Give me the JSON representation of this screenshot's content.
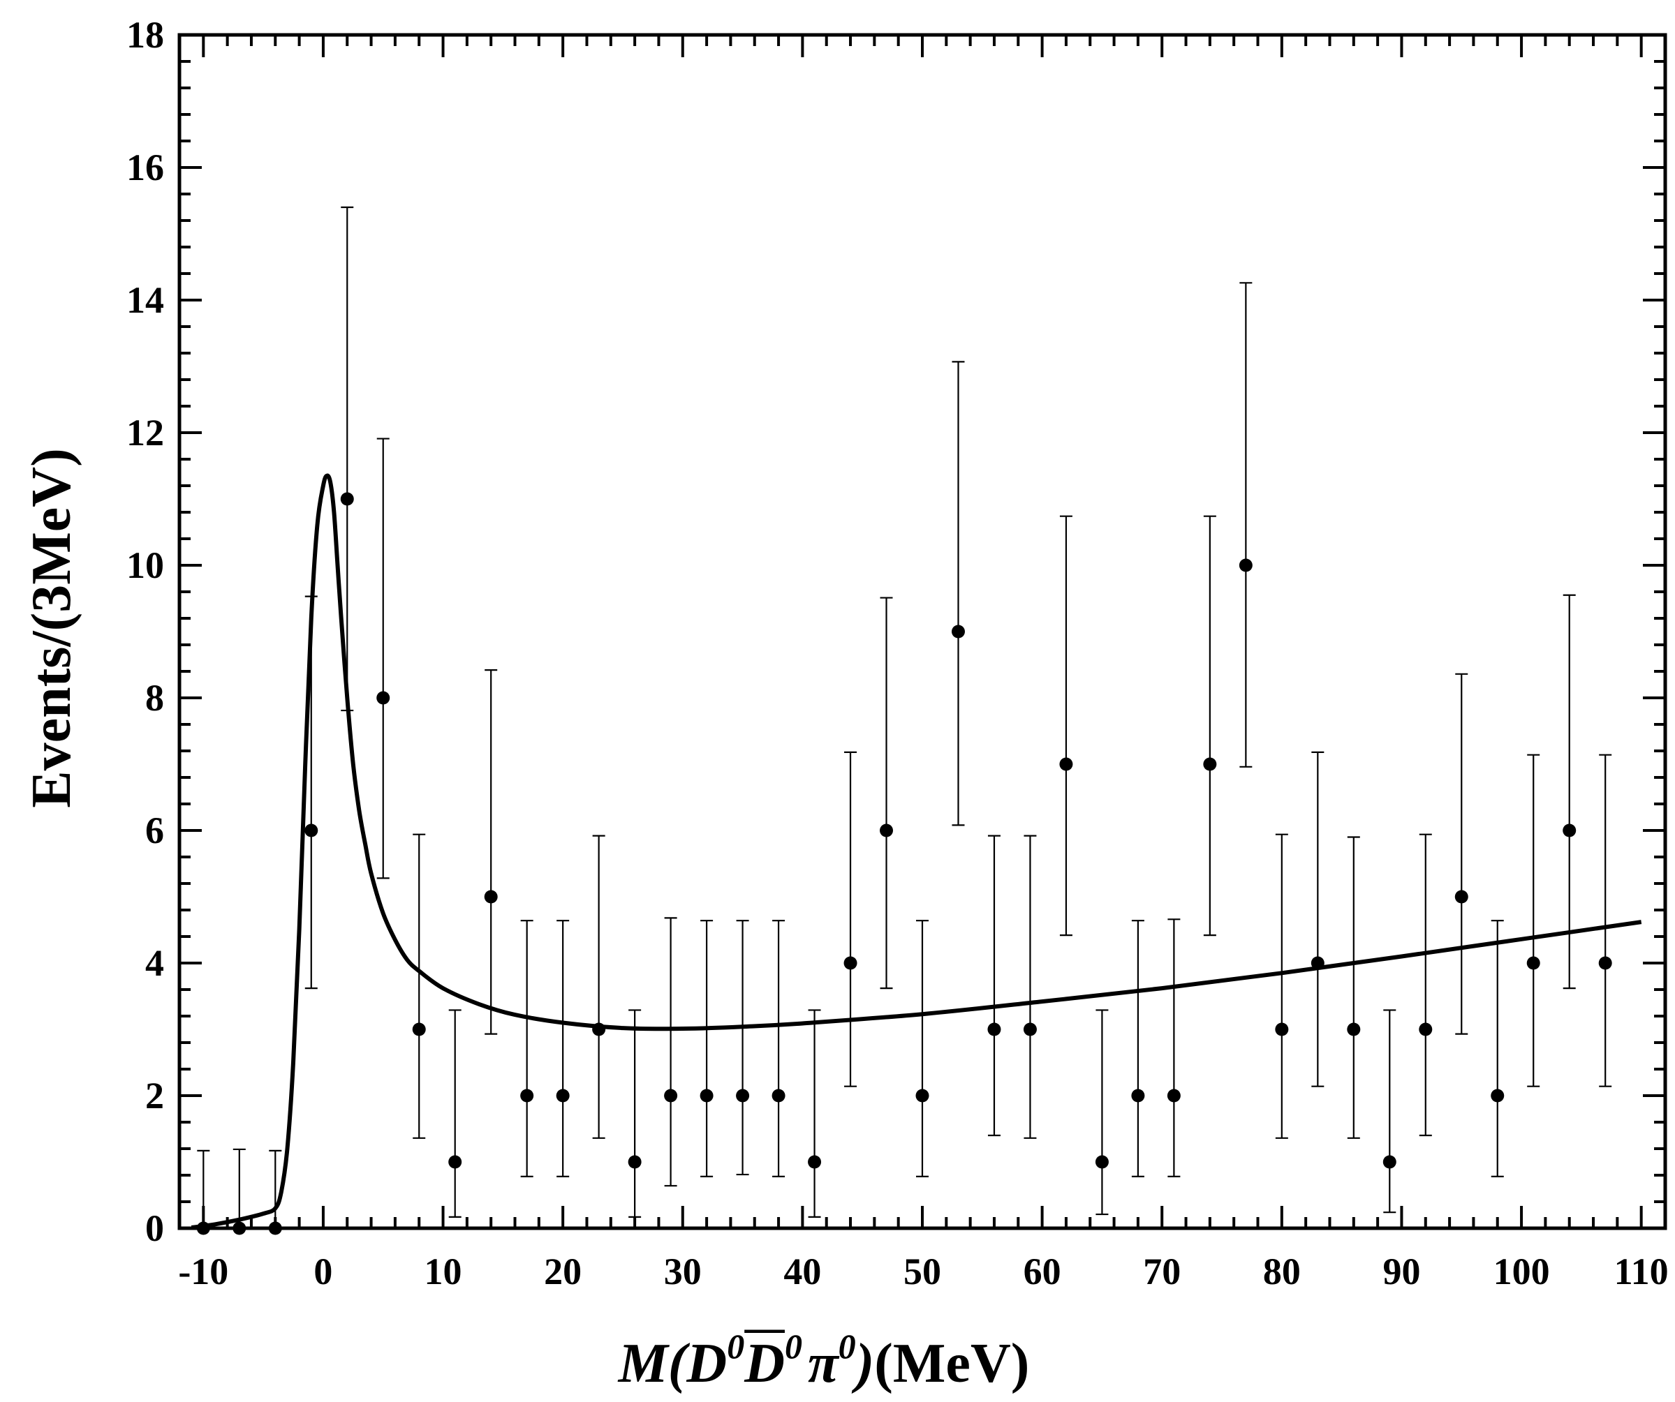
{
  "chart_data": {
    "type": "scatter",
    "title": "",
    "ylabel": "Events/(3MeV)",
    "xlabel": {
      "prefix": "M(",
      "d1": "D",
      "d1_sup": "0",
      "d2": "D",
      "d2_sup": "0",
      "pi": "π",
      "pi_sup": "0",
      "close": ")",
      "unit": "(MeV)"
    },
    "xlim": [
      -12,
      112
    ],
    "ylim": [
      0,
      18
    ],
    "x_ticks": [
      -10,
      0,
      10,
      20,
      30,
      40,
      50,
      60,
      70,
      80,
      90,
      100,
      110
    ],
    "x_tick_labels": [
      "-10",
      "0",
      "10",
      "20",
      "30",
      "40",
      "50",
      "60",
      "70",
      "80",
      "90",
      "100",
      "110"
    ],
    "y_ticks": [
      0,
      2,
      4,
      6,
      8,
      10,
      12,
      14,
      16,
      18
    ],
    "y_tick_labels": [
      "0",
      "2",
      "4",
      "6",
      "8",
      "10",
      "12",
      "14",
      "16",
      "18"
    ],
    "grid": false,
    "series": [
      {
        "kind": "points_with_errors",
        "x": [
          -10,
          -7,
          -4,
          -1,
          2,
          5,
          8,
          11,
          14,
          17,
          20,
          23,
          26,
          29,
          32,
          35,
          38,
          41,
          44,
          47,
          50,
          53,
          56,
          59,
          62,
          65,
          68,
          71,
          74,
          77,
          80,
          83,
          86,
          89,
          92,
          95,
          98,
          101,
          104,
          107
        ],
        "y": [
          0,
          0,
          0,
          6,
          11,
          8,
          3,
          1,
          5,
          2,
          2,
          3,
          1,
          2,
          2,
          2,
          2,
          1,
          4,
          6,
          2,
          9,
          3,
          3,
          7,
          1,
          2,
          2,
          7,
          10,
          3,
          4,
          3,
          1,
          3,
          5,
          2,
          4,
          6,
          4
        ],
        "y_low": [
          0,
          0,
          0,
          3.62,
          7.81,
          5.28,
          1.36,
          0.17,
          2.93,
          0.78,
          0.78,
          1.36,
          0.17,
          0.64,
          0.78,
          0.81,
          0.78,
          0.17,
          2.14,
          3.62,
          0.78,
          6.08,
          1.4,
          1.36,
          4.42,
          0.21,
          0.78,
          0.78,
          4.42,
          6.96,
          1.36,
          2.14,
          1.36,
          0.24,
          1.4,
          2.93,
          0.78,
          2.14,
          3.62,
          2.14
        ],
        "y_high": [
          1.17,
          1.19,
          1.17,
          9.53,
          15.4,
          11.91,
          5.94,
          3.29,
          8.42,
          4.64,
          4.64,
          5.92,
          3.29,
          4.68,
          4.64,
          4.64,
          4.64,
          3.29,
          7.18,
          9.51,
          4.64,
          13.07,
          5.92,
          5.92,
          10.74,
          3.29,
          4.64,
          4.66,
          10.74,
          14.26,
          5.94,
          7.18,
          5.9,
          3.29,
          5.94,
          8.36,
          4.64,
          7.14,
          9.55,
          7.14
        ]
      },
      {
        "kind": "fit_curve",
        "x": [
          -11,
          -9,
          -7,
          -5,
          -4,
          -3.5,
          -3,
          -2.5,
          -2,
          -1.5,
          -1,
          -0.5,
          0,
          0.3,
          0.6,
          0.9,
          1.2,
          1.5,
          2,
          2.5,
          3,
          3.5,
          4,
          5,
          6,
          7,
          8,
          10,
          13,
          16,
          20,
          25,
          30,
          35,
          40,
          50,
          60,
          70,
          80,
          90,
          100,
          110
        ],
        "y": [
          0.01,
          0.06,
          0.13,
          0.22,
          0.3,
          0.55,
          1.2,
          2.5,
          4.5,
          7.0,
          9.2,
          10.6,
          11.2,
          11.35,
          11.25,
          10.8,
          10.0,
          9.2,
          8.0,
          7.0,
          6.3,
          5.8,
          5.35,
          4.75,
          4.35,
          4.05,
          3.88,
          3.62,
          3.38,
          3.22,
          3.1,
          3.02,
          3.01,
          3.04,
          3.09,
          3.23,
          3.42,
          3.62,
          3.85,
          4.1,
          4.36,
          4.62
        ]
      }
    ]
  }
}
